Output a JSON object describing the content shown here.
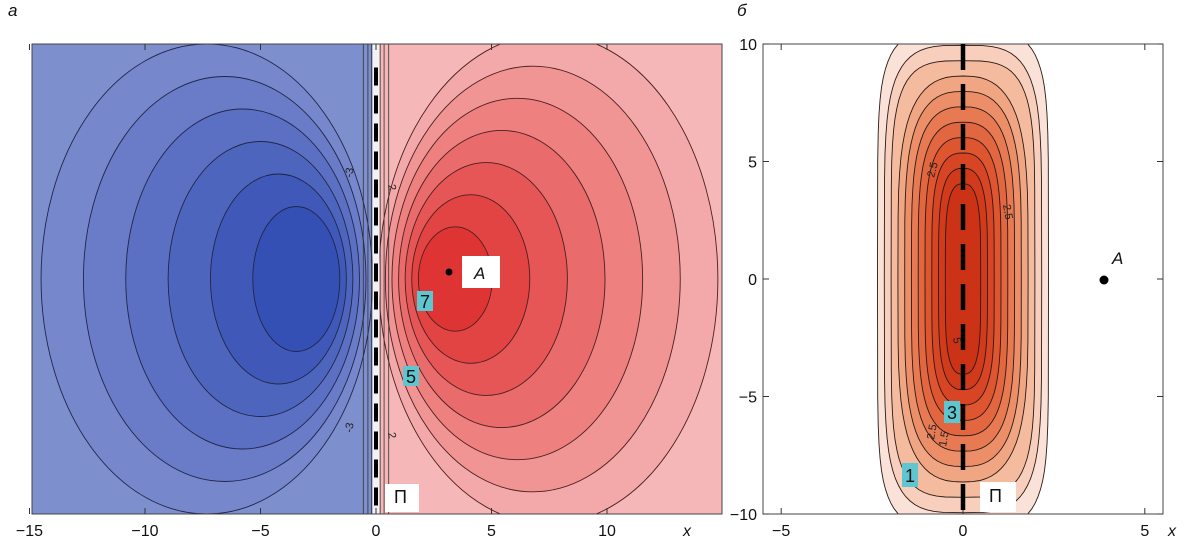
{
  "chart_data": [
    {
      "type": "contour",
      "panel_label": "а",
      "x_axis_variable": "x",
      "xlim": [
        -15,
        15
      ],
      "x_tick_values": [
        -15,
        -10,
        -5,
        0,
        5,
        10
      ],
      "x_tick_labels": [
        "−15",
        "−10",
        "−5",
        "0",
        "5",
        "10"
      ],
      "field": {
        "type": "dipole",
        "negative_center": [
          -3,
          0
        ],
        "positive_center": [
          3,
          0
        ],
        "x_range": [
          -15,
          15
        ],
        "y_range": [
          -10,
          10
        ]
      },
      "negative_levels": [
        -1,
        -2,
        -3,
        -4,
        -5,
        -6
      ],
      "positive_levels": [
        1,
        2,
        3,
        4,
        5,
        6,
        7
      ],
      "contour_labels": [
        "-3",
        "-3",
        "2",
        "2"
      ],
      "boxed_labels": [
        "7",
        "5"
      ],
      "point": {
        "name": "A",
        "x": 3,
        "y": 0
      },
      "line_label": "П",
      "dashed_line": {
        "x": 0,
        "y_from": -10,
        "y_to": 9
      }
    },
    {
      "type": "contour",
      "panel_label": "б",
      "x_axis_variable": "x",
      "xlim": [
        -5.5,
        5.5
      ],
      "ylim": [
        -10,
        10
      ],
      "x_tick_values": [
        -5,
        0,
        5
      ],
      "x_tick_labels": [
        "−5",
        "0",
        "5"
      ],
      "y_tick_values": [
        -10,
        -5,
        0,
        5,
        10
      ],
      "y_tick_labels": [
        "−10",
        "−5",
        "0",
        "5",
        "10"
      ],
      "field": {
        "type": "ridge",
        "center_x": 0,
        "sigma_x": 1.0,
        "sigma_y": 5.5
      },
      "levels": [
        0.5,
        1,
        1.5,
        2,
        2.5,
        3,
        3.5,
        4,
        4.5,
        5,
        5.5
      ],
      "contour_labels": [
        "2.5",
        "2.5",
        "5",
        "2.5",
        "1.5"
      ],
      "boxed_labels": [
        "3",
        "1"
      ],
      "point": {
        "name": "A",
        "x": 4,
        "y": -0.3
      },
      "line_label": "П",
      "dashed_line": {
        "x": 0,
        "y_from": -10,
        "y_to": 10
      }
    }
  ]
}
